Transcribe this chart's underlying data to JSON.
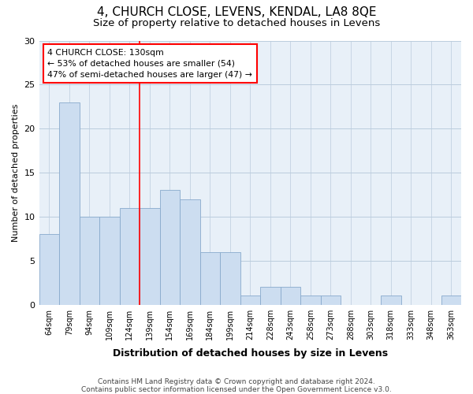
{
  "title1": "4, CHURCH CLOSE, LEVENS, KENDAL, LA8 8QE",
  "title2": "Size of property relative to detached houses in Levens",
  "xlabel": "Distribution of detached houses by size in Levens",
  "ylabel": "Number of detached properties",
  "categories": [
    "64sqm",
    "79sqm",
    "94sqm",
    "109sqm",
    "124sqm",
    "139sqm",
    "154sqm",
    "169sqm",
    "184sqm",
    "199sqm",
    "214sqm",
    "228sqm",
    "243sqm",
    "258sqm",
    "273sqm",
    "288sqm",
    "303sqm",
    "318sqm",
    "333sqm",
    "348sqm",
    "363sqm"
  ],
  "values": [
    8,
    23,
    10,
    10,
    11,
    11,
    13,
    12,
    6,
    6,
    1,
    2,
    2,
    1,
    1,
    0,
    0,
    1,
    0,
    0,
    1
  ],
  "bar_color": "#ccddf0",
  "bar_edge_color": "#88aacc",
  "grid_color": "#bbccdd",
  "background_color": "#e8f0f8",
  "red_line_x": 4.5,
  "annotation_title": "4 CHURCH CLOSE: 130sqm",
  "annotation_line1": "← 53% of detached houses are smaller (54)",
  "annotation_line2": "47% of semi-detached houses are larger (47) →",
  "ylim": [
    0,
    30
  ],
  "yticks": [
    0,
    5,
    10,
    15,
    20,
    25,
    30
  ],
  "footnote1": "Contains HM Land Registry data © Crown copyright and database right 2024.",
  "footnote2": "Contains public sector information licensed under the Open Government Licence v3.0."
}
